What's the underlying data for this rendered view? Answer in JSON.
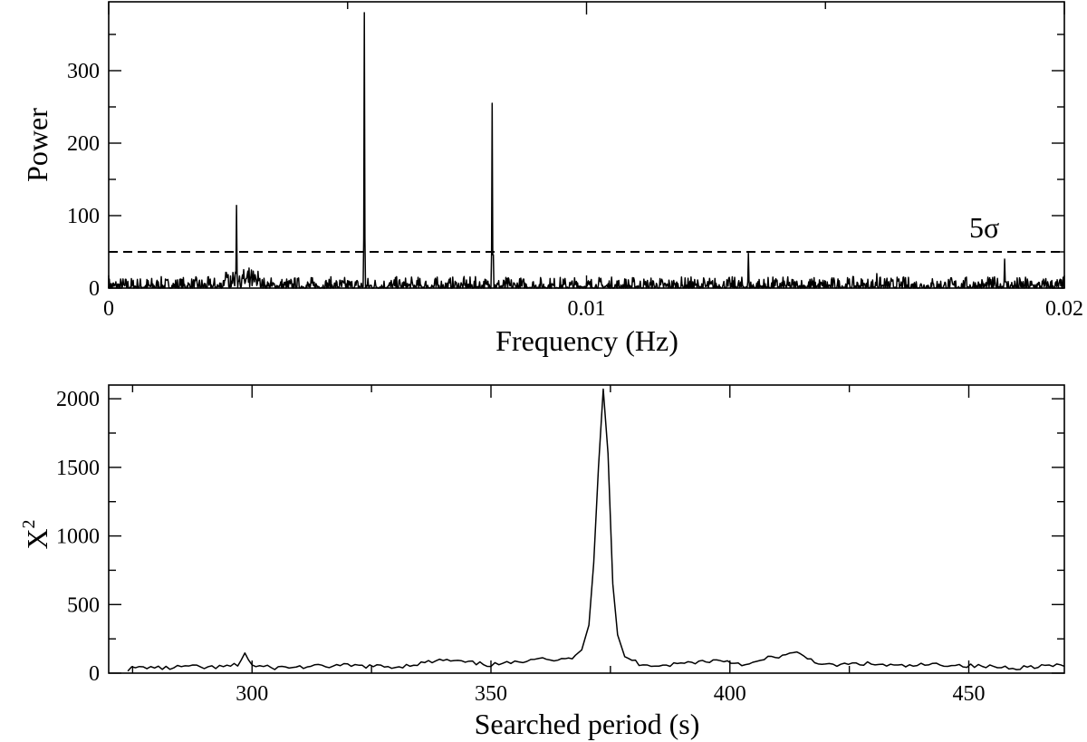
{
  "chart_data": [
    {
      "type": "line",
      "xlabel": "Frequency (Hz)",
      "ylabel": "Power",
      "xlim": [
        0,
        0.02
      ],
      "ylim": [
        0,
        395
      ],
      "x_ticks": [
        0,
        0.01,
        0.02
      ],
      "x_tick_labels": [
        "0",
        "0.01",
        "0.02"
      ],
      "y_ticks": [
        0,
        100,
        200,
        300
      ],
      "y_tick_labels": [
        "0",
        "100",
        "200",
        "300"
      ],
      "grid": false,
      "threshold": {
        "value": 50,
        "label": "5σ",
        "style": "dashed"
      },
      "peaks": [
        {
          "x": 0.00268,
          "y": 114
        },
        {
          "x": 0.00535,
          "y": 380
        },
        {
          "x": 0.00803,
          "y": 255
        },
        {
          "x": 0.01339,
          "y": 48
        },
        {
          "x": 0.01607,
          "y": 20
        },
        {
          "x": 0.01875,
          "y": 40
        }
      ],
      "noise_level": 8
    },
    {
      "type": "line",
      "xlabel": "Searched period (s)",
      "ylabel": "X",
      "ylabel_superscript": "2",
      "xlim": [
        270,
        470
      ],
      "ylim": [
        0,
        2100
      ],
      "x_ticks": [
        300,
        350,
        400,
        450
      ],
      "x_tick_labels": [
        "300",
        "350",
        "400",
        "450"
      ],
      "y_ticks": [
        0,
        500,
        1000,
        1500,
        2000
      ],
      "y_tick_labels": [
        "0",
        "500",
        "1000",
        "1500",
        "2000"
      ],
      "grid": false,
      "peak": {
        "x": 373.5,
        "y": 2070
      },
      "baseline": 45,
      "x": [
        274,
        278,
        282,
        286,
        290,
        294,
        297,
        298.5,
        300,
        304,
        310,
        320,
        330,
        340,
        350,
        355,
        360,
        364,
        367,
        369,
        370.5,
        371.5,
        372.5,
        373.5,
        374.5,
        375.5,
        376.5,
        378,
        381,
        386,
        392,
        398,
        404,
        408,
        414,
        420,
        428,
        436,
        444,
        452,
        460,
        466,
        470
      ],
      "values": [
        30,
        45,
        35,
        50,
        40,
        45,
        60,
        145,
        55,
        40,
        45,
        55,
        45,
        95,
        60,
        75,
        120,
        90,
        110,
        170,
        350,
        800,
        1500,
        2070,
        1600,
        650,
        280,
        120,
        70,
        55,
        80,
        95,
        60,
        110,
        145,
        55,
        70,
        50,
        65,
        50,
        40,
        55,
        50
      ]
    }
  ]
}
